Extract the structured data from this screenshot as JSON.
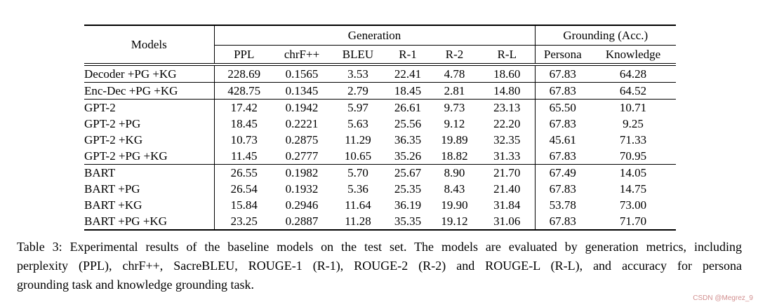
{
  "table": {
    "header": {
      "models_label": "Models",
      "generation_label": "Generation",
      "grounding_label": "Grounding (Acc.)",
      "sub_columns": [
        "PPL",
        "chrF++",
        "BLEU",
        "R-1",
        "R-2",
        "R-L",
        "Persona",
        "Knowledge"
      ]
    },
    "rows": [
      {
        "model": "Decoder +PG +KG",
        "values": [
          "228.69",
          "0.1565",
          "3.53",
          "22.41",
          "4.78",
          "18.60",
          "67.83",
          "64.28"
        ],
        "bold": [
          6
        ],
        "sep": false
      },
      {
        "model": "Enc-Dec +PG +KG",
        "values": [
          "428.75",
          "0.1345",
          "2.79",
          "18.45",
          "2.81",
          "14.80",
          "67.83",
          "64.52"
        ],
        "bold": [
          6
        ],
        "sep": true
      },
      {
        "model": "GPT-2",
        "values": [
          "17.42",
          "0.1942",
          "5.97",
          "26.61",
          "9.73",
          "23.13",
          "65.50",
          "10.71"
        ],
        "bold": [],
        "sep": true
      },
      {
        "model": "GPT-2 +PG",
        "values": [
          "18.45",
          "0.2221",
          "5.63",
          "25.56",
          "9.12",
          "22.20",
          "67.83",
          "9.25"
        ],
        "bold": [
          6
        ],
        "sep": false
      },
      {
        "model": "GPT-2 +KG",
        "values": [
          "10.73",
          "0.2875",
          "11.29",
          "36.35",
          "19.89",
          "32.35",
          "45.61",
          "71.33"
        ],
        "bold": [
          0
        ],
        "sep": false
      },
      {
        "model": "GPT-2 +PG +KG",
        "values": [
          "11.45",
          "0.2777",
          "10.65",
          "35.26",
          "18.82",
          "31.33",
          "67.83",
          "70.95"
        ],
        "bold": [
          6
        ],
        "sep": false
      },
      {
        "model": "BART",
        "values": [
          "26.55",
          "0.1982",
          "5.70",
          "25.67",
          "8.90",
          "21.70",
          "67.49",
          "14.05"
        ],
        "bold": [],
        "sep": true
      },
      {
        "model": "BART +PG",
        "values": [
          "26.54",
          "0.1932",
          "5.36",
          "25.35",
          "8.43",
          "21.40",
          "67.83",
          "14.75"
        ],
        "bold": [
          6
        ],
        "sep": false
      },
      {
        "model": "BART +KG",
        "values": [
          "15.84",
          "0.2946",
          "11.64",
          "36.19",
          "19.90",
          "31.84",
          "53.78",
          "73.00"
        ],
        "bold": [
          1,
          2,
          3,
          4,
          5,
          7
        ],
        "sep": false
      },
      {
        "model": "BART +PG +KG",
        "values": [
          "23.25",
          "0.2887",
          "11.28",
          "35.35",
          "19.12",
          "31.06",
          "67.83",
          "71.70"
        ],
        "bold": [
          6
        ],
        "sep": false
      }
    ]
  },
  "caption": {
    "lines": [
      "Table 3: Experimental results of the baseline models on the test set. The models are evaluated by generation metrics, including",
      "perplexity (PPL), chrF++, SacreBLEU, ROUGE-1 (R-1), ROUGE-2 (R-2) and ROUGE-L (R-L), and accuracy for persona",
      "grounding task and knowledge grounding task."
    ]
  },
  "watermark": {
    "text": "CSDN @Megrez_9",
    "color": "#d28f8f"
  }
}
